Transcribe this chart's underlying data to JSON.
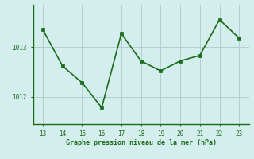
{
  "x": [
    13,
    14,
    15,
    16,
    17,
    18,
    19,
    20,
    21,
    22,
    23
  ],
  "y": [
    1013.35,
    1012.62,
    1012.28,
    1011.78,
    1013.27,
    1012.72,
    1012.52,
    1012.72,
    1012.83,
    1013.55,
    1013.18
  ],
  "line_color": "#1a6b1a",
  "marker_color": "#1a6b1a",
  "bg_color": "#d4eeee",
  "grid_color": "#b0d0d0",
  "xlabel": "Graphe pression niveau de la mer (hPa)",
  "xlabel_color": "#1a6b1a",
  "tick_color": "#1a6b1a",
  "ytick_labels": [
    "1012",
    "1013"
  ],
  "ytick_values": [
    1012,
    1013
  ],
  "ylim": [
    1011.45,
    1013.85
  ],
  "xlim": [
    12.5,
    23.5
  ],
  "xticks": [
    13,
    14,
    15,
    16,
    17,
    18,
    19,
    20,
    21,
    22,
    23
  ]
}
